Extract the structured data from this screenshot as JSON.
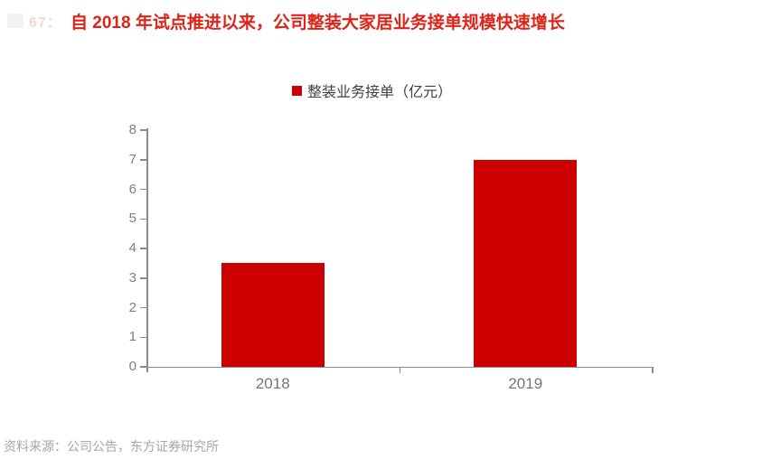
{
  "header": {
    "figure_ghost": "67：",
    "title": "自 2018 年试点推进以来，公司整装大家居业务接单规模快速增长"
  },
  "legend": {
    "marker": "■",
    "label": "整装业务接单（亿元）"
  },
  "chart_data": {
    "type": "bar",
    "title": "自 2018 年试点推进以来，公司整装大家居业务接单规模快速增长",
    "categories": [
      "2018",
      "2019"
    ],
    "values": [
      3.5,
      7.0
    ],
    "series_name": "整装业务接单（亿元）",
    "xlabel": "",
    "ylabel": "",
    "ylim": [
      0,
      8
    ],
    "ytick_step": 1,
    "grid": false,
    "legend_position": "top-center"
  },
  "footer": {
    "source": "资料来源：公司公告，东方证券研究所"
  },
  "colors": {
    "title_red": "#DE2418",
    "bar_red": "#CC0000",
    "axis_gray": "#8C8C8C",
    "y_tick_label_gray": "#7F7F7F",
    "category_label_gray": "#757575",
    "legend_text": "#404040",
    "source_gray": "#A6A6A6"
  }
}
